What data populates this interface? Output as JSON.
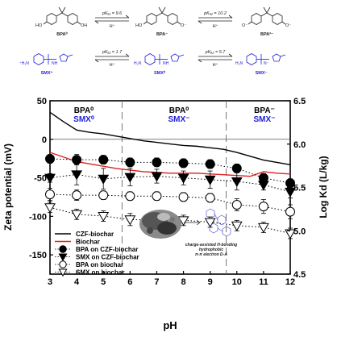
{
  "scheme": {
    "bpa_row": {
      "species": [
        "BPA⁰",
        "BPA⁻",
        "BPA²⁻"
      ],
      "pka": [
        "pKₐ₁ = 9.6",
        "pKₐ₂ = 10.2"
      ],
      "arrow_sub": [
        "H⁺",
        "H⁺"
      ],
      "ho": "HO",
      "oh": "OH",
      "o_minus": "O⁻",
      "color": "#222222"
    },
    "smx_row": {
      "species": [
        "SMX⁺",
        "SMX⁰",
        "SMX⁻"
      ],
      "pka": [
        "pKₐ₁ = 1.7",
        "pKₐ₂ = 5.7"
      ],
      "arrow_sub": [
        "H⁺",
        "H⁺"
      ],
      "nh3": "⁺H₃N",
      "h2n": "H₂N",
      "nh": "NH",
      "n_minus": "N⁻",
      "color": "#1f1fd6"
    }
  },
  "regions": [
    {
      "bpa": "BPA⁰",
      "smx": "SMX⁰"
    },
    {
      "bpa": "BPA⁰",
      "smx": "SMX⁻"
    },
    {
      "bpa": "BPA⁻",
      "smx": "SMX⁻"
    }
  ],
  "legend": [
    "CZF-biochar",
    "Biochar",
    "BPA on CZF-biochar",
    "SMX on CZF-biochar",
    "BPA on biochar",
    "SMX on biochar"
  ],
  "inset": {
    "labels": [
      "charge-assisted H-bonding",
      "hydrophobic",
      "π-π electron D-A"
    ]
  },
  "chart_data": {
    "type": "line",
    "title": "",
    "xlabel": "pH",
    "ylabel": "Zeta potential (mV)",
    "y2label": "Log Kd (L/kg)",
    "xlim": [
      3,
      12
    ],
    "ylim": [
      -175,
      50
    ],
    "y2lim": [
      4.5,
      6.5
    ],
    "xticks": [
      3,
      4,
      5,
      6,
      7,
      8,
      9,
      10,
      11,
      12
    ],
    "yticks": [
      50,
      0,
      -50,
      -100,
      -150
    ],
    "y2ticks": [
      4.5,
      5.0,
      5.5,
      6.0,
      6.5
    ],
    "region_boundaries": [
      5.7,
      9.6
    ],
    "zeta_series": [
      {
        "name": "CZF-biochar",
        "color": "#000000",
        "x": [
          3,
          3.5,
          4,
          4.5,
          5,
          5.5,
          6,
          6.5,
          7,
          7.5,
          8,
          8.5,
          9,
          9.5,
          10,
          10.5,
          11,
          11.5,
          12
        ],
        "y": [
          35,
          23,
          12,
          9,
          7,
          4,
          1,
          -2,
          -4,
          -6,
          -8,
          -9,
          -11,
          -13,
          -17,
          -22,
          -27,
          -30,
          -33
        ]
      },
      {
        "name": "Biochar",
        "color": "#e02020",
        "x": [
          3,
          3.5,
          4,
          4.5,
          5,
          5.5,
          6,
          6.5,
          7,
          7.5,
          8,
          8.5,
          9,
          9.5,
          10,
          10.5,
          11,
          11.5,
          12
        ],
        "y": [
          -17,
          -23,
          -29,
          -32,
          -35,
          -38,
          -40,
          -42,
          -43,
          -44,
          -44,
          -44,
          -45,
          -46,
          -47,
          -48,
          -42,
          -44,
          -45
        ]
      }
    ],
    "kd_series": [
      {
        "name": "BPA on CZF-biochar",
        "marker": "filled-circle",
        "x": [
          3,
          4,
          5,
          6,
          7,
          8,
          9,
          10,
          11,
          12
        ],
        "y": [
          5.83,
          5.82,
          5.82,
          5.79,
          5.79,
          5.78,
          5.77,
          5.72,
          5.61,
          5.55
        ],
        "err": [
          0.05,
          0.06,
          0.05,
          0.05,
          0.05,
          0.05,
          0.05,
          0.05,
          0.05,
          0.05
        ]
      },
      {
        "name": "SMX on CZF-biochar",
        "marker": "filled-triangle-down",
        "x": [
          3,
          4,
          5,
          6,
          7,
          8,
          9,
          10,
          11,
          12
        ],
        "y": [
          5.61,
          5.65,
          5.6,
          5.62,
          5.63,
          5.61,
          5.59,
          5.57,
          5.53,
          5.45
        ],
        "err": [
          0.05,
          0.12,
          0.12,
          0.1,
          0.08,
          0.08,
          0.1,
          0.1,
          0.06,
          0.07
        ]
      },
      {
        "name": "BPA on biochar",
        "marker": "open-circle",
        "x": [
          3,
          4,
          5,
          6,
          7,
          8,
          9,
          10,
          11,
          12
        ],
        "y": [
          5.42,
          5.41,
          5.41,
          5.4,
          5.4,
          5.39,
          5.38,
          5.3,
          5.28,
          5.22
        ],
        "err": [
          0.07,
          0.06,
          0.05,
          0.05,
          0.05,
          0.05,
          0.05,
          0.07,
          0.08,
          0.08
        ]
      },
      {
        "name": "SMX on biochar",
        "marker": "open-triangle-down",
        "x": [
          3,
          4,
          5,
          6,
          7,
          8,
          9,
          10,
          11,
          12
        ],
        "y": [
          5.27,
          5.19,
          5.17,
          5.13,
          5.12,
          5.12,
          5.1,
          5.06,
          5.04,
          4.97
        ],
        "err": [
          0.06,
          0.06,
          0.06,
          0.07,
          0.06,
          0.06,
          0.06,
          0.06,
          0.06,
          0.06
        ]
      }
    ],
    "grid": false,
    "legend_position": "bottom-left"
  }
}
